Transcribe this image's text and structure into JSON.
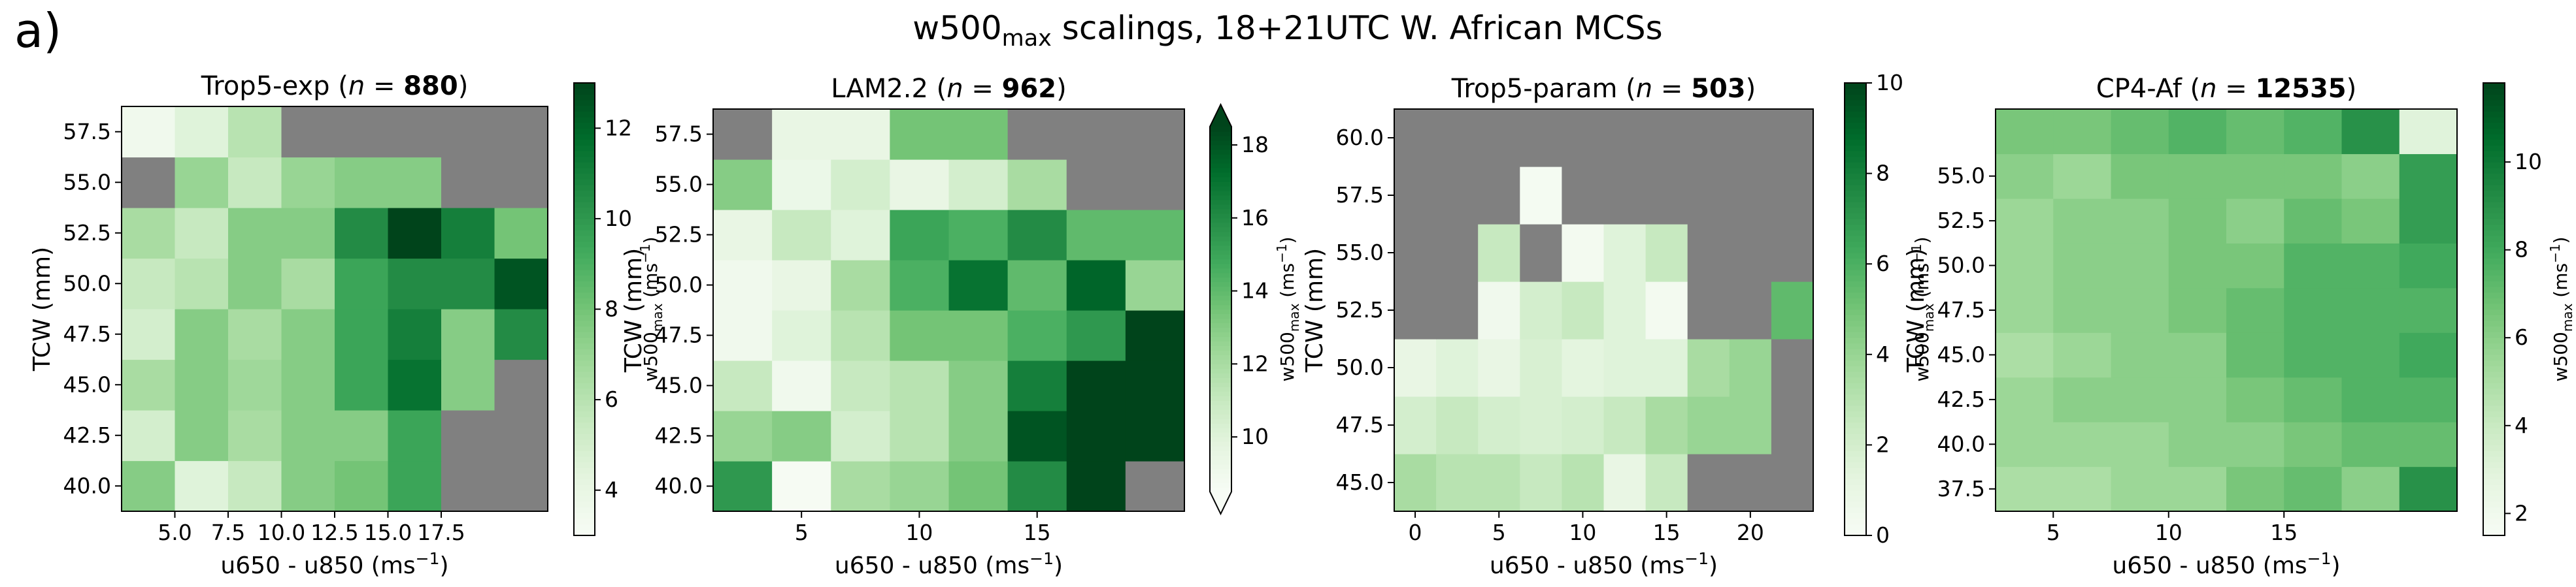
{
  "panel_label": "a)",
  "suptitle": {
    "main": "w500",
    "sub": "max",
    "rest": " scalings, 18+21UTC W. African MCSs"
  },
  "colors": {
    "missing": "#808080",
    "cmap": [
      "#f7fcf5",
      "#e5f5e0",
      "#c7e9c0",
      "#a1d99b",
      "#74c476",
      "#41ab5d",
      "#238b45",
      "#006d2c",
      "#00441b"
    ]
  },
  "chart_data": [
    {
      "type": "heatmap",
      "title_name": "Trop5-exp",
      "title_n": "880",
      "xlabel": "u650 - u850 (ms",
      "ylabel": "TCW (mm)",
      "cbar_label": {
        "main": "w500",
        "sub": "max",
        "rest": " (ms"
      },
      "x_start": 2.5,
      "x_step": 2.5,
      "y_start": 38.75,
      "y_step": 2.5,
      "x_ticks": [
        5,
        7.5,
        10,
        12.5,
        15,
        17.5
      ],
      "x_tick_labels": [
        "5.0",
        "7.5",
        "10.0",
        "12.5",
        "15.0",
        "17.5"
      ],
      "y_ticks": [
        40,
        42.5,
        45,
        47.5,
        50,
        52.5,
        55,
        57.5
      ],
      "y_tick_labels": [
        "40.0",
        "42.5",
        "45.0",
        "47.5",
        "50.0",
        "52.5",
        "55.0",
        "57.5"
      ],
      "cbar_range": [
        3,
        13
      ],
      "cbar_ticks": [
        4,
        6,
        8,
        10,
        12
      ],
      "cbar_tick_labels": [
        "4",
        "6",
        "8",
        "10",
        "12"
      ],
      "cbar_extend_max": false,
      "cbar_extend_min": false,
      "values": [
        [
          7.5,
          4.5,
          5.5,
          7.5,
          8,
          9.5,
          null,
          null
        ],
        [
          5,
          7.5,
          6.5,
          7.5,
          7.5,
          9.5,
          null,
          null
        ],
        [
          6.5,
          7.5,
          6.8,
          7.5,
          9.5,
          11.5,
          7.5,
          null
        ],
        [
          5,
          7.5,
          6.5,
          7.5,
          9.5,
          11,
          7.5,
          10.5
        ],
        [
          5.5,
          6,
          7.5,
          6.5,
          9.5,
          10.5,
          10.5,
          12.5
        ],
        [
          6.5,
          5.5,
          7.5,
          7.5,
          10.5,
          13,
          11,
          8
        ],
        [
          null,
          7,
          5.5,
          7,
          7.5,
          7.5,
          null,
          null
        ],
        [
          3.5,
          4.5,
          6,
          null,
          null,
          null,
          null,
          null
        ]
      ]
    },
    {
      "type": "heatmap",
      "title_name": "LAM2.2",
      "title_n": "962",
      "xlabel": "u650 - u850 (ms",
      "ylabel": "TCW (mm)",
      "cbar_label": {
        "main": "w500",
        "sub": "max",
        "rest": " (ms"
      },
      "x_start": 1.25,
      "x_step": 2.5,
      "y_start": 38.75,
      "y_step": 2.5,
      "x_ticks": [
        5,
        10,
        15
      ],
      "x_tick_labels": [
        "5",
        "10",
        "15"
      ],
      "y_ticks": [
        40,
        42.5,
        45,
        47.5,
        50,
        52.5,
        55,
        57.5
      ],
      "y_tick_labels": [
        "40.0",
        "42.5",
        "45.0",
        "47.5",
        "50.0",
        "52.5",
        "55.0",
        "57.5"
      ],
      "cbar_range": [
        8.5,
        18.5
      ],
      "cbar_ticks": [
        10,
        12,
        14,
        16,
        18
      ],
      "cbar_tick_labels": [
        "10",
        "12",
        "14",
        "16",
        "18"
      ],
      "cbar_extend_max": true,
      "cbar_extend_min": true,
      "values": [
        [
          15.5,
          8.6,
          12,
          12.5,
          13.5,
          16,
          19,
          null
        ],
        [
          12.5,
          13,
          10.5,
          11.5,
          13,
          18,
          19,
          19
        ],
        [
          11,
          9,
          11,
          11.5,
          13,
          16.5,
          19,
          19
        ],
        [
          9,
          10,
          11.5,
          13.5,
          13.5,
          14.5,
          15.5,
          19
        ],
        [
          9,
          9.5,
          12,
          14.5,
          17,
          14,
          17.5,
          12.5
        ],
        [
          9.5,
          11,
          10,
          15,
          14.5,
          16,
          14,
          14
        ],
        [
          13,
          9.3,
          10.5,
          9.5,
          10.5,
          12,
          null,
          null
        ],
        [
          null,
          9.5,
          9.5,
          13.5,
          13.5,
          null,
          null,
          null
        ]
      ]
    },
    {
      "type": "heatmap",
      "title_name": "Trop5-param",
      "title_n": "503",
      "xlabel": "u650 - u850 (ms",
      "ylabel": "TCW (mm)",
      "cbar_label": {
        "main": "w500",
        "sub": "max",
        "rest": " (ms"
      },
      "x_start": -1.25,
      "x_step": 2.5,
      "y_start": 43.75,
      "y_step": 2.5,
      "x_ticks": [
        0,
        5,
        10,
        15,
        20
      ],
      "x_tick_labels": [
        "0",
        "5",
        "10",
        "15",
        "20"
      ],
      "y_ticks": [
        45,
        47.5,
        50,
        52.5,
        55,
        57.5,
        60
      ],
      "y_tick_labels": [
        "45.0",
        "47.5",
        "50.0",
        "52.5",
        "55.0",
        "57.5",
        "60.0"
      ],
      "cbar_range": [
        0,
        10
      ],
      "cbar_ticks": [
        0,
        2,
        4,
        6,
        8,
        10
      ],
      "cbar_tick_labels": [
        "0",
        "2",
        "4",
        "6",
        "8",
        "10"
      ],
      "cbar_extend_max": false,
      "cbar_extend_min": false,
      "values": [
        [
          3.5,
          3,
          3,
          2.5,
          3,
          1,
          2.5,
          null,
          null,
          null
        ],
        [
          2,
          2.5,
          2,
          1.8,
          2,
          2.5,
          3.5,
          4,
          4,
          null
        ],
        [
          1,
          1.5,
          1,
          1.8,
          1.3,
          1.5,
          1.5,
          3.5,
          4,
          null
        ],
        [
          null,
          null,
          0.5,
          2,
          2.5,
          1.5,
          0.3,
          null,
          null,
          5.5
        ],
        [
          null,
          null,
          2.5,
          null,
          0.3,
          1.5,
          2.5,
          null,
          null,
          null
        ],
        [
          null,
          null,
          null,
          0.2,
          null,
          null,
          null,
          null,
          null,
          null
        ],
        [
          null,
          null,
          null,
          null,
          null,
          null,
          null,
          null,
          null,
          null
        ]
      ]
    },
    {
      "type": "heatmap",
      "title_name": "CP4-Af",
      "title_n": "12535",
      "xlabel": "u650 - u850 (ms",
      "ylabel": "TCW (mm)",
      "cbar_label": {
        "main": "w500",
        "sub": "max",
        "rest": " (ms"
      },
      "x_start": 2.5,
      "x_step": 2.5,
      "y_start": 36.25,
      "y_step": 2.5,
      "x_ticks": [
        5,
        10,
        15
      ],
      "x_tick_labels": [
        "5",
        "10",
        "15"
      ],
      "y_ticks": [
        37.5,
        40,
        42.5,
        45,
        47.5,
        50,
        52.5,
        55
      ],
      "y_tick_labels": [
        "37.5",
        "40.0",
        "42.5",
        "45.0",
        "47.5",
        "50.0",
        "52.5",
        "55.0"
      ],
      "cbar_range": [
        1.5,
        11.8
      ],
      "cbar_ticks": [
        2,
        4,
        6,
        8,
        10
      ],
      "cbar_tick_labels": [
        "2",
        "4",
        "6",
        "8",
        "10"
      ],
      "cbar_extend_max": false,
      "cbar_extend_min": false,
      "values": [
        [
          5,
          5,
          5.5,
          5.5,
          6.5,
          7,
          6,
          9
        ],
        [
          5.5,
          5.5,
          5.5,
          6,
          6,
          6.5,
          7,
          7
        ],
        [
          5.5,
          6,
          6,
          6,
          6.5,
          7,
          7.5,
          7.5
        ],
        [
          5,
          5.5,
          6,
          6,
          7,
          7.5,
          7.5,
          8
        ],
        [
          5.5,
          6,
          6,
          6.5,
          7,
          7.5,
          7.5,
          7.5
        ],
        [
          5.5,
          6,
          6,
          6.5,
          6.5,
          7.5,
          7.5,
          8
        ],
        [
          5.5,
          6,
          6,
          6.5,
          6,
          7,
          6.5,
          8.5
        ],
        [
          6,
          5.5,
          6.5,
          6.5,
          6.5,
          6.5,
          6,
          8.5
        ],
        [
          6.5,
          6.5,
          7,
          7.5,
          7,
          7.5,
          9,
          3
        ]
      ]
    }
  ]
}
